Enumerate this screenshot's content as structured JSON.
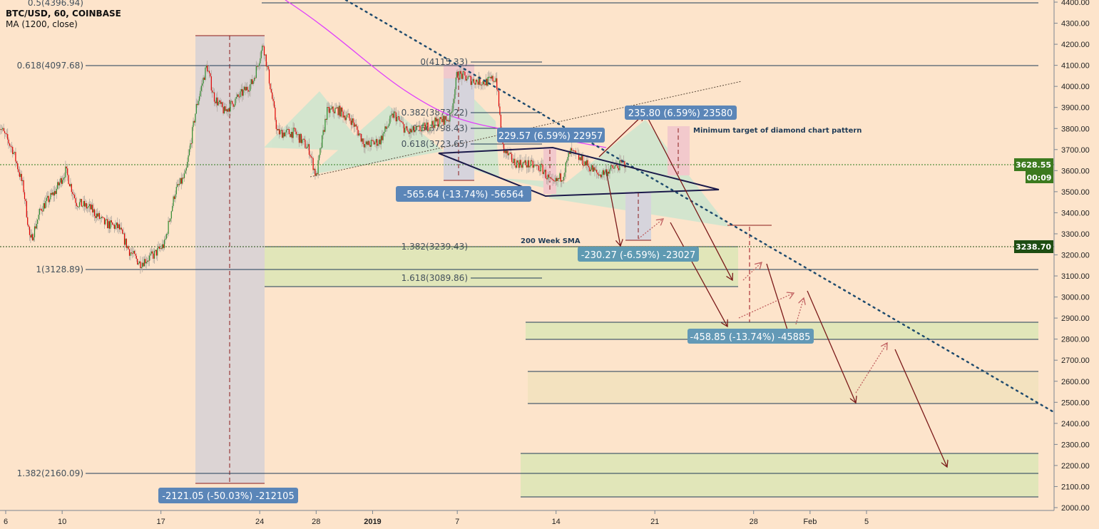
{
  "header": {
    "symbol": "BTC/USD, 60, COINBASE",
    "indicator": "MA (1200, close)"
  },
  "colors": {
    "background": "#fde4cb",
    "up": "#2e8b2e",
    "down": "#e00000",
    "ma": "#e040fb",
    "fib_line": "#1f3b57",
    "arrow": "#7b1a1a",
    "diamond": "#1b1a4a",
    "zone_green": "#dfe6b8",
    "measure_box": "#5b86b8"
  },
  "chart_data": {
    "type": "candlestick",
    "title": "BTC/USD, 60, COINBASE",
    "ylim": [
      2000,
      4400
    ],
    "y_ticks": [
      "4400.00",
      "4300.00",
      "4200.00",
      "4100.00",
      "4000.00",
      "3900.00",
      "3800.00",
      "3700.00",
      "3600.00",
      "3500.00",
      "3400.00",
      "3300.00",
      "3200.00",
      "3100.00",
      "3000.00",
      "2900.00",
      "2800.00",
      "2700.00",
      "2600.00",
      "2500.00",
      "2400.00",
      "2300.00",
      "2200.00",
      "2100.00",
      "2000.00"
    ],
    "x_ticks": [
      {
        "date": "2018-12-06",
        "label": "6"
      },
      {
        "date": "2018-12-10",
        "label": "10"
      },
      {
        "date": "2018-12-17",
        "label": "17"
      },
      {
        "date": "2018-12-24",
        "label": "24"
      },
      {
        "date": "2018-12-28",
        "label": "28"
      },
      {
        "date": "2019-01-01",
        "label": "2019"
      },
      {
        "date": "2019-01-07",
        "label": "7"
      },
      {
        "date": "2019-01-14",
        "label": "14"
      },
      {
        "date": "2019-01-21",
        "label": "21"
      },
      {
        "date": "2019-01-28",
        "label": "28"
      },
      {
        "date": "2019-02-01",
        "label": "Feb"
      },
      {
        "date": "2019-02-05",
        "label": "5"
      }
    ],
    "price_path": [
      [
        "2018-12-05 12:00",
        3820
      ],
      [
        "2018-12-06 12:00",
        3700
      ],
      [
        "2018-12-07 06:00",
        3520
      ],
      [
        "2018-12-07 18:00",
        3260
      ],
      [
        "2018-12-08 12:00",
        3420
      ],
      [
        "2018-12-09 12:00",
        3500
      ],
      [
        "2018-12-10 06:00",
        3600
      ],
      [
        "2018-12-11 00:00",
        3450
      ],
      [
        "2018-12-12 00:00",
        3420
      ],
      [
        "2018-12-13 00:00",
        3350
      ],
      [
        "2018-12-14 00:00",
        3330
      ],
      [
        "2018-12-14 18:00",
        3220
      ],
      [
        "2018-12-15 12:00",
        3160
      ],
      [
        "2018-12-16 12:00",
        3200
      ],
      [
        "2018-12-17 06:00",
        3250
      ],
      [
        "2018-12-18 00:00",
        3500
      ],
      [
        "2018-12-18 18:00",
        3580
      ],
      [
        "2018-12-19 12:00",
        3900
      ],
      [
        "2018-12-20 06:00",
        4100
      ],
      [
        "2018-12-20 18:00",
        3950
      ],
      [
        "2018-12-21 12:00",
        3880
      ],
      [
        "2018-12-22 12:00",
        3950
      ],
      [
        "2018-12-23 12:00",
        4020
      ],
      [
        "2018-12-24 06:00",
        4200
      ],
      [
        "2018-12-24 18:00",
        4000
      ],
      [
        "2018-12-25 06:00",
        3780
      ],
      [
        "2018-12-26 12:00",
        3780
      ],
      [
        "2018-12-27 12:00",
        3700
      ],
      [
        "2018-12-28 00:00",
        3570
      ],
      [
        "2018-12-28 18:00",
        3880
      ],
      [
        "2018-12-29 12:00",
        3890
      ],
      [
        "2018-12-30 12:00",
        3840
      ],
      [
        "2018-12-31 12:00",
        3720
      ],
      [
        "2019-01-01 12:00",
        3740
      ],
      [
        "2019-01-02 12:00",
        3870
      ],
      [
        "2019-01-03 12:00",
        3780
      ],
      [
        "2019-01-04 12:00",
        3800
      ],
      [
        "2019-01-05 12:00",
        3830
      ],
      [
        "2019-01-06 12:00",
        3850
      ],
      [
        "2019-01-07 00:00",
        4060
      ],
      [
        "2019-01-08 00:00",
        4030
      ],
      [
        "2019-01-09 00:00",
        4020
      ],
      [
        "2019-01-09 18:00",
        4040
      ],
      [
        "2019-01-10 06:00",
        3700
      ],
      [
        "2019-01-11 00:00",
        3640
      ],
      [
        "2019-01-12 00:00",
        3630
      ],
      [
        "2019-01-13 00:00",
        3610
      ],
      [
        "2019-01-13 18:00",
        3530
      ],
      [
        "2019-01-14 12:00",
        3580
      ],
      [
        "2019-01-15 00:00",
        3690
      ],
      [
        "2019-01-16 00:00",
        3640
      ],
      [
        "2019-01-17 00:00",
        3580
      ],
      [
        "2019-01-18 00:00",
        3610
      ],
      [
        "2019-01-19 00:00",
        3640
      ]
    ],
    "last_price": "3628.55",
    "countdown": "00:09",
    "sma_price": "3238.70",
    "fib_levels": [
      {
        "label": "0.5(4396.94)",
        "price": 4396.94
      },
      {
        "label": "0.618(4097.68)",
        "price": 4097.68
      },
      {
        "label": "1(3128.89)",
        "price": 3128.89
      },
      {
        "label": "1.382(2160.09)",
        "price": 2160.09
      },
      {
        "label": "0(4115.33)",
        "price": 4115.33
      },
      {
        "label": "0.382(3873.22)",
        "price": 3873.22
      },
      {
        "label": "0.5(3798.43)",
        "price": 3798.43
      },
      {
        "label": "0.618(3723.65)",
        "price": 3723.65
      },
      {
        "label": "1.382(3239.43)",
        "price": 3239.43
      },
      {
        "label": "1.618(3089.86)",
        "price": 3089.86
      }
    ],
    "measurements": [
      "-2121.05 (-50.03%) -212105",
      "-565.64 (-13.74%) -56564",
      "229.57 (6.59%) 22957",
      "-230.27 (-6.59%) -23027",
      "235.80 (6.59%) 23580",
      "-458.85 (-13.74%) -45885"
    ],
    "annotations": {
      "sma": "200 Week SMA",
      "diamond": "Minimum target of diamond chart pattern"
    }
  }
}
